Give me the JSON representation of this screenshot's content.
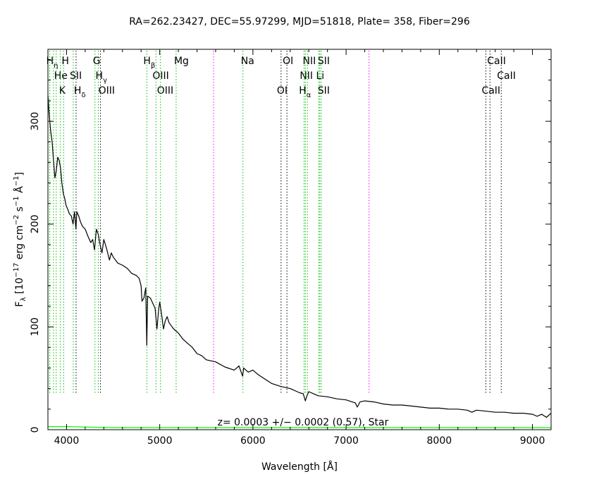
{
  "chart_data": {
    "type": "line",
    "title": "RA=262.23427, DEC=55.97299, MJD=51818, Plate= 358, Fiber=296",
    "xlabel": "Wavelength [Å]",
    "ylabel": {
      "main": "F",
      "main_sub": "λ",
      "open": " [10",
      "sup1": "−17",
      "mid1": " erg cm",
      "sup2": "−2",
      "mid2": " s",
      "sup3": "−1",
      "mid3": " Å",
      "sup4": "−1",
      "close": "]"
    },
    "xlim": [
      3800,
      9200
    ],
    "ylim": [
      0,
      370
    ],
    "xticks": [
      4000,
      5000,
      6000,
      7000,
      8000,
      9000
    ],
    "xtick_labels": [
      "4000",
      "5000",
      "6000",
      "7000",
      "8000",
      "9000"
    ],
    "yticks": [
      0,
      100,
      200,
      300
    ],
    "ytick_labels": [
      "0",
      "100",
      "200",
      "300"
    ],
    "grid": false,
    "annotation": "z= 0.0003 +/− 0.0002 (0.57), Star",
    "series": [
      {
        "color": "#000000",
        "x": [
          3800,
          3815,
          3830,
          3845,
          3860,
          3875,
          3890,
          3905,
          3920,
          3935,
          3950,
          3965,
          3970,
          3980,
          3995,
          4010,
          4030,
          4050,
          4070,
          4085,
          4101,
          4110,
          4130,
          4150,
          4170,
          4200,
          4230,
          4260,
          4280,
          4300,
          4320,
          4340,
          4360,
          4380,
          4400,
          4430,
          4460,
          4480,
          4500,
          4550,
          4600,
          4650,
          4700,
          4750,
          4780,
          4800,
          4810,
          4830,
          4850,
          4861,
          4870,
          4900,
          4920,
          4950,
          4970,
          4990,
          5000,
          5020,
          5040,
          5060,
          5080,
          5100,
          5150,
          5200,
          5250,
          5300,
          5350,
          5400,
          5450,
          5500,
          5600,
          5700,
          5800,
          5850,
          5890,
          5900,
          5950,
          6000,
          6050,
          6100,
          6200,
          6300,
          6400,
          6500,
          6540,
          6563,
          6580,
          6600,
          6650,
          6700,
          6800,
          6900,
          7000,
          7100,
          7120,
          7150,
          7200,
          7300,
          7400,
          7500,
          7600,
          7700,
          7800,
          7900,
          8000,
          8100,
          8200,
          8300,
          8350,
          8400,
          8500,
          8600,
          8700,
          8800,
          8900,
          9000,
          9050,
          9100,
          9150,
          9200
        ],
        "y": [
          325,
          305,
          290,
          280,
          262,
          245,
          252,
          265,
          262,
          255,
          240,
          230,
          228,
          225,
          218,
          215,
          210,
          208,
          200,
          212,
          195,
          212,
          208,
          202,
          198,
          195,
          188,
          182,
          185,
          175,
          195,
          190,
          180,
          172,
          185,
          176,
          165,
          172,
          168,
          162,
          160,
          157,
          152,
          150,
          147,
          140,
          125,
          128,
          138,
          82,
          130,
          128,
          124,
          118,
          98,
          118,
          124,
          112,
          98,
          106,
          110,
          104,
          98,
          94,
          88,
          84,
          80,
          74,
          72,
          68,
          66,
          61,
          58,
          62,
          52,
          60,
          56,
          58,
          54,
          51,
          45,
          42,
          40,
          36,
          35,
          28,
          33,
          37,
          35,
          33,
          32,
          30,
          29,
          26,
          22,
          27,
          28,
          27,
          25,
          24,
          24,
          23,
          22,
          21,
          21,
          20,
          20,
          19,
          17,
          19,
          18,
          17,
          17,
          16,
          16,
          15,
          13,
          15,
          12,
          16
        ]
      },
      {
        "color": "#00ff00",
        "x": [
          3800,
          4000,
          4500,
          5000,
          6000,
          7000,
          8000,
          9000,
          9200
        ],
        "y": [
          3,
          3,
          2,
          2,
          2,
          2,
          2,
          2,
          2
        ]
      }
    ],
    "lines": [
      {
        "w": 3820,
        "color": "#00c000",
        "label": "H",
        "sub": "η",
        "row": 0,
        "dx": -5
      },
      {
        "w": 3860,
        "color": "#00c000",
        "label": "",
        "sub": "",
        "row": 0,
        "dx": 0
      },
      {
        "w": 3889,
        "color": "#00c000",
        "label": "He",
        "sub": "",
        "row": 1,
        "dx": -3
      },
      {
        "w": 3934,
        "color": "#00c000",
        "label": "K",
        "sub": "",
        "row": 2,
        "dx": -2
      },
      {
        "w": 3969,
        "color": "#00c000",
        "label": "H",
        "sub": "",
        "row": 0,
        "dx": -3
      },
      {
        "w": 4072,
        "color": "#00c000",
        "label": "SII",
        "sub": "",
        "row": 1,
        "dx": -5
      },
      {
        "w": 4102,
        "color": "#000000",
        "label": "H",
        "sub": "δ",
        "row": 2,
        "dx": -3
      },
      {
        "w": 4305,
        "color": "#00c000",
        "label": "G",
        "sub": "",
        "row": 0,
        "dx": -3
      },
      {
        "w": 4341,
        "color": "#00c000",
        "label": "H",
        "sub": "γ",
        "row": 1,
        "dx": -4
      },
      {
        "w": 4364,
        "color": "#000000",
        "label": "OIII",
        "sub": "",
        "row": 2,
        "dx": -3
      },
      {
        "w": 4862,
        "color": "#00c000",
        "label": "H",
        "sub": "β",
        "row": 0,
        "dx": -5
      },
      {
        "w": 4960,
        "color": "#00c000",
        "label": "OIII",
        "sub": "",
        "row": 1,
        "dx": -5
      },
      {
        "w": 5008,
        "color": "#00c000",
        "label": "OIII",
        "sub": "",
        "row": 2,
        "dx": -5
      },
      {
        "w": 5176,
        "color": "#00c000",
        "label": "Mg",
        "sub": "",
        "row": 0,
        "dx": -3
      },
      {
        "w": 5577,
        "color": "#ff00ff",
        "label": "",
        "sub": "",
        "row": 0,
        "dx": 0
      },
      {
        "w": 5893,
        "color": "#00c000",
        "label": "Na",
        "sub": "",
        "row": 0,
        "dx": -3
      },
      {
        "w": 6302,
        "color": "#000000",
        "label": "OI",
        "sub": "",
        "row": 2,
        "dx": -6
      },
      {
        "w": 6365,
        "color": "#000000",
        "label": "OI",
        "sub": "",
        "row": 0,
        "dx": -6
      },
      {
        "w": 6549,
        "color": "#00c000",
        "label": "NII",
        "sub": "",
        "row": 0,
        "dx": -2
      },
      {
        "w": 6563,
        "color": "#00c000",
        "label": "NII",
        "sub": "",
        "row": 1,
        "dx": -8
      },
      {
        "w": 6585,
        "color": "#00c000",
        "label": "H",
        "sub": "α",
        "row": 2,
        "dx": -12
      },
      {
        "w": 6708,
        "color": "#00c000",
        "label": "Li",
        "sub": "",
        "row": 1,
        "dx": -4
      },
      {
        "w": 6718,
        "color": "#00c000",
        "label": "SII",
        "sub": "",
        "row": 0,
        "dx": -3
      },
      {
        "w": 6733,
        "color": "#00c000",
        "label": "SII",
        "sub": "",
        "row": 2,
        "dx": -5
      },
      {
        "w": 7246,
        "color": "#ff00ff",
        "label": "",
        "sub": "",
        "row": 0,
        "dx": 0
      },
      {
        "w": 8500,
        "color": "#000000",
        "label": "CaII",
        "sub": "",
        "row": 2,
        "dx": -6
      },
      {
        "w": 8544,
        "color": "#000000",
        "label": "CaII",
        "sub": "",
        "row": 0,
        "dx": -4
      },
      {
        "w": 8665,
        "color": "#000000",
        "label": "CaII",
        "sub": "",
        "row": 1,
        "dx": -6
      }
    ]
  }
}
